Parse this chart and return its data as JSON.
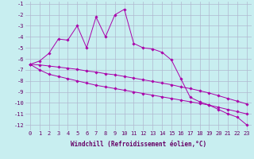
{
  "xlabel": "Windchill (Refroidissement éolien,°C)",
  "background_color": "#c8eef0",
  "grid_color": "#b0b8d0",
  "line_color": "#aa00aa",
  "x_values": [
    0,
    1,
    2,
    3,
    4,
    5,
    6,
    7,
    8,
    9,
    10,
    11,
    12,
    13,
    14,
    15,
    16,
    17,
    18,
    19,
    20,
    21,
    22,
    23
  ],
  "series1": [
    -6.5,
    -6.2,
    -5.5,
    -4.2,
    -4.3,
    -3.0,
    -5.0,
    -2.2,
    -4.0,
    -2.0,
    -1.5,
    -4.6,
    -5.0,
    -5.1,
    -5.4,
    -6.1,
    -7.8,
    -9.5,
    -9.9,
    -10.2,
    -10.6,
    -11.0,
    -11.3,
    -12.0
  ],
  "series2": [
    -6.5,
    -7.0,
    -7.4,
    -7.6,
    -7.8,
    -8.0,
    -8.2,
    -8.4,
    -8.55,
    -8.7,
    -8.85,
    -9.0,
    -9.15,
    -9.3,
    -9.45,
    -9.6,
    -9.75,
    -9.9,
    -10.05,
    -10.2,
    -10.4,
    -10.6,
    -10.8,
    -11.0
  ],
  "series3": [
    -6.5,
    -6.55,
    -6.65,
    -6.75,
    -6.85,
    -6.95,
    -7.1,
    -7.2,
    -7.35,
    -7.45,
    -7.6,
    -7.75,
    -7.9,
    -8.05,
    -8.2,
    -8.35,
    -8.55,
    -8.7,
    -8.9,
    -9.1,
    -9.35,
    -9.6,
    -9.85,
    -10.1
  ],
  "ylim": [
    -12.5,
    -0.8
  ],
  "xlim": [
    -0.5,
    23.5
  ],
  "yticks": [
    -12,
    -11,
    -10,
    -9,
    -8,
    -7,
    -6,
    -5,
    -4,
    -3,
    -2,
    -1
  ],
  "xticks": [
    0,
    1,
    2,
    3,
    4,
    5,
    6,
    7,
    8,
    9,
    10,
    11,
    12,
    13,
    14,
    15,
    16,
    17,
    18,
    19,
    20,
    21,
    22,
    23
  ],
  "xlabel_color": "#660066",
  "tick_color": "#660066",
  "tick_fontsize": 5.0,
  "xlabel_fontsize": 5.5
}
